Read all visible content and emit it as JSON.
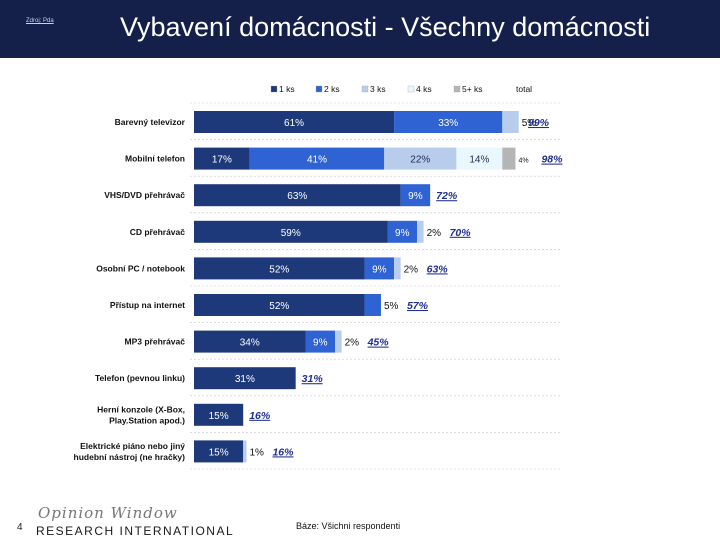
{
  "header": {
    "source_label": "Zdroj: Pda",
    "title": "Vybavení domácnosti - Všechny domácnosti"
  },
  "footer": {
    "page_number": "4",
    "brand_script": "Opinion Window",
    "brand_main": "RESEARCH INTERNATIONAL",
    "base_note": "Báze: Všichni respondenti"
  },
  "colors": {
    "1 ks": "#1d3979",
    "2 ks": "#2f63d4",
    "3 ks": "#b8cdeb",
    "4 ks": "#e9f8ff",
    "5+ ks": "#b5b5b5",
    "total_text": "#1e2f8f",
    "header_bg": "#14204a"
  },
  "chart_data": {
    "type": "bar",
    "orientation": "horizontal",
    "stacked": true,
    "legend": [
      "1 ks",
      "2 ks",
      "3 ks",
      "4 ks",
      "5+ ks",
      "total"
    ],
    "legend_position": "top",
    "categories": [
      "Barevný televizor",
      "Mobilní telefon",
      "VHS/DVD přehrávač",
      "CD přehrávač",
      "Osobní PC / notebook",
      "Přístup na internet",
      "MP3 přehrávač",
      "Telefon (pevnou linku)",
      "Herní konzole (X-Box, Play.Station apod.)",
      "Elektrické piáno nebo jiný hudební nástroj (ne hračky)"
    ],
    "series": [
      {
        "name": "1 ks",
        "values": [
          61,
          17,
          63,
          59,
          52,
          52,
          34,
          31,
          15,
          15
        ],
        "labels": [
          "61%",
          "17%",
          "63%",
          "59%",
          "52%",
          "52%",
          "34%",
          "31%",
          "15%",
          "15%"
        ]
      },
      {
        "name": "2 ks",
        "values": [
          33,
          41,
          9,
          9,
          9,
          5,
          9,
          0,
          0,
          0
        ],
        "labels": [
          "33%",
          "41%",
          "9%",
          "9%",
          "9%",
          "5%",
          "9%",
          "",
          "",
          ""
        ]
      },
      {
        "name": "3 ks",
        "values": [
          5,
          22,
          0,
          2,
          2,
          0,
          2,
          0,
          0,
          1
        ],
        "labels": [
          "5%",
          "22%",
          "",
          "2%",
          "2%",
          "",
          "2%",
          "",
          "",
          "1%"
        ]
      },
      {
        "name": "4 ks",
        "values": [
          0,
          14,
          0,
          0,
          0,
          0,
          0,
          0,
          0,
          0
        ],
        "labels": [
          "",
          "14%",
          "",
          "",
          "",
          "",
          "",
          "",
          "",
          ""
        ]
      },
      {
        "name": "5+ ks",
        "values": [
          0,
          4,
          0,
          0,
          0,
          0,
          0,
          0,
          0,
          0
        ],
        "labels": [
          "",
          "4%",
          "",
          "",
          "",
          "",
          "",
          "",
          "",
          ""
        ]
      }
    ],
    "totals": [
      99,
      98,
      72,
      70,
      63,
      57,
      45,
      31,
      16,
      16
    ],
    "total_labels": [
      "99%",
      "98%",
      "72%",
      "70%",
      "63%",
      "57%",
      "45%",
      "31%",
      "16%",
      "16%"
    ],
    "xlim": [
      0,
      100
    ],
    "grid": "horizontal dashed separators"
  }
}
